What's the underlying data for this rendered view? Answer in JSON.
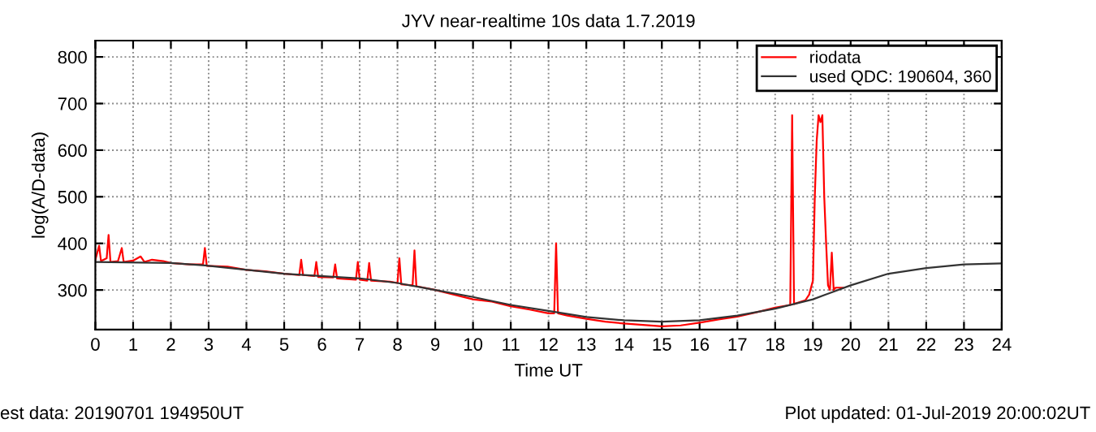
{
  "chart_data": {
    "type": "line",
    "title": "JYV near-realtime 10s data 1.7.2019",
    "xlabel": "Time UT",
    "ylabel": "log(A/D-data)",
    "xlim": [
      0,
      24
    ],
    "ylim": [
      215,
      835
    ],
    "xticks": [
      0,
      1,
      2,
      3,
      4,
      5,
      6,
      7,
      8,
      9,
      10,
      11,
      12,
      13,
      14,
      15,
      16,
      17,
      18,
      19,
      20,
      21,
      22,
      23,
      24
    ],
    "yticks": [
      300,
      400,
      500,
      600,
      700,
      800
    ],
    "grid": true,
    "legend": "top right",
    "annotations": [
      "est data: 20190701 194950UT",
      "Plot updated: 01-Jul-2019 20:00:02UT"
    ],
    "series": [
      {
        "name": "riodata",
        "color": "#ff0000",
        "x": [
          0,
          0.1,
          0.15,
          0.3,
          0.35,
          0.4,
          0.6,
          0.7,
          0.75,
          1.0,
          1.2,
          1.3,
          1.5,
          1.8,
          2.0,
          2.5,
          2.85,
          2.9,
          2.95,
          3.5,
          4.0,
          4.5,
          5.0,
          5.4,
          5.45,
          5.5,
          5.8,
          5.85,
          5.9,
          6.3,
          6.35,
          6.4,
          6.9,
          6.95,
          7.0,
          7.2,
          7.25,
          7.3,
          7.8,
          8.0,
          8.05,
          8.1,
          8.4,
          8.45,
          8.5,
          8.9,
          9.0,
          9.5,
          10.0,
          10.5,
          11.0,
          11.5,
          12.0,
          12.15,
          12.2,
          12.25,
          12.5,
          13.0,
          13.5,
          14.0,
          14.5,
          15.0,
          15.5,
          16.0,
          16.5,
          17.0,
          17.5,
          18.0,
          18.4,
          18.45,
          18.5,
          18.8,
          18.9,
          19.0,
          19.05,
          19.1,
          19.15,
          19.2,
          19.25,
          19.3,
          19.35,
          19.4,
          19.45,
          19.5,
          19.55,
          19.6,
          19.8
        ],
        "values": [
          365,
          395,
          362,
          368,
          418,
          360,
          362,
          390,
          360,
          363,
          372,
          360,
          365,
          362,
          358,
          355,
          355,
          390,
          352,
          350,
          343,
          340,
          335,
          332,
          365,
          332,
          330,
          360,
          328,
          327,
          355,
          325,
          322,
          360,
          322,
          320,
          358,
          320,
          318,
          315,
          368,
          312,
          310,
          385,
          308,
          302,
          300,
          290,
          280,
          275,
          265,
          258,
          250,
          250,
          400,
          250,
          245,
          238,
          232,
          228,
          225,
          222,
          224,
          230,
          237,
          243,
          252,
          262,
          268,
          675,
          270,
          278,
          290,
          320,
          500,
          620,
          675,
          660,
          675,
          500,
          400,
          310,
          300,
          380,
          300,
          305,
          305
        ]
      },
      {
        "name": "used QDC: 190604, 360",
        "color": "#333333",
        "x": [
          0,
          2,
          3,
          5,
          7,
          8,
          9,
          10,
          11,
          12,
          13,
          14,
          15,
          16,
          17,
          18,
          19,
          19.5,
          20,
          21,
          22,
          23,
          24
        ],
        "values": [
          360,
          358,
          352,
          335,
          325,
          315,
          300,
          285,
          268,
          255,
          242,
          235,
          232,
          235,
          245,
          260,
          280,
          295,
          310,
          335,
          347,
          355,
          357
        ]
      }
    ]
  }
}
